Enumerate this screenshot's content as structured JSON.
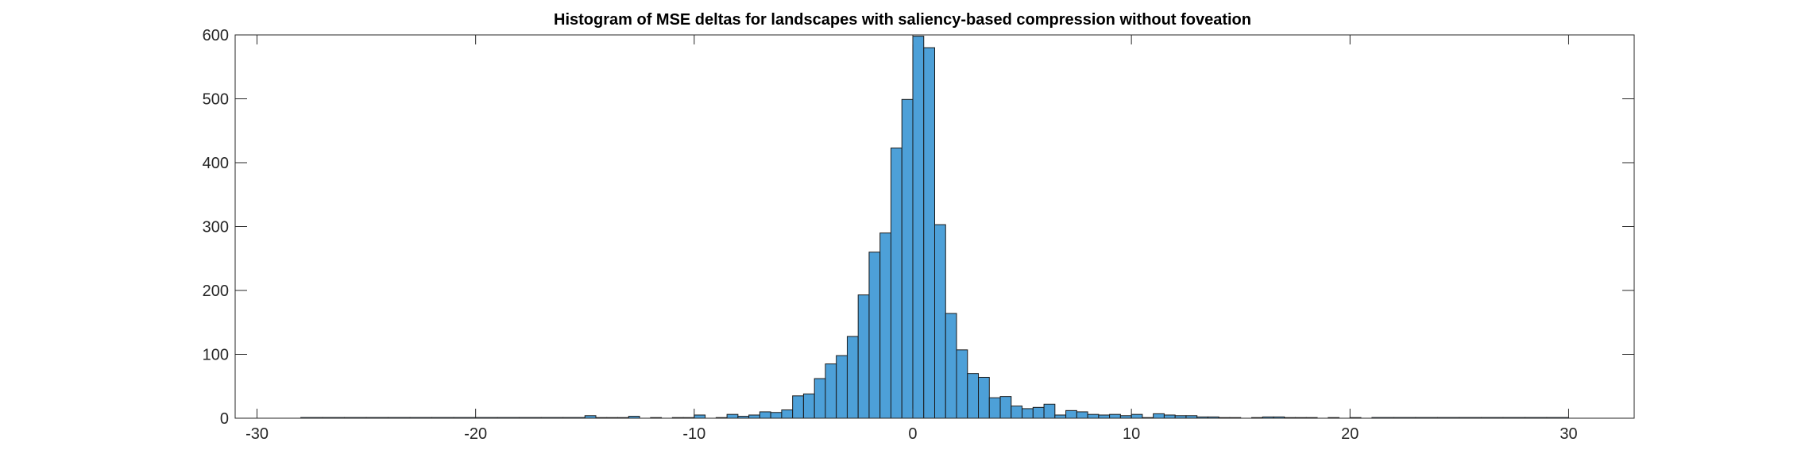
{
  "chart_data": {
    "type": "bar",
    "title": "Histogram of MSE deltas for landscapes with saliency-based compression without foveation",
    "xlabel": "",
    "ylabel": "",
    "xlim": [
      -31,
      33
    ],
    "ylim": [
      0,
      600
    ],
    "xticks": [
      -30,
      -20,
      -10,
      0,
      10,
      20,
      30
    ],
    "yticks": [
      0,
      100,
      200,
      300,
      400,
      500,
      600
    ],
    "grid": false,
    "bar_color": "#4DA0D8",
    "bar_edge_color": "#1a1a1a",
    "bin_width": 0.5,
    "bin_edges_start": -15.0,
    "values": [
      4,
      1,
      1,
      1,
      3,
      0,
      1,
      0,
      1,
      1,
      5,
      0,
      1,
      6,
      3,
      5,
      10,
      9,
      13,
      35,
      38,
      62,
      85,
      98,
      128,
      193,
      260,
      290,
      423,
      499,
      598,
      580,
      303,
      164,
      107,
      70,
      64,
      32,
      34,
      19,
      15,
      17,
      22,
      5,
      12,
      10,
      6,
      5,
      6,
      4,
      6,
      1,
      7,
      5,
      4,
      4,
      2,
      2,
      1,
      1,
      0,
      1,
      2,
      2,
      1,
      1,
      1,
      0,
      1,
      0,
      1
    ]
  }
}
